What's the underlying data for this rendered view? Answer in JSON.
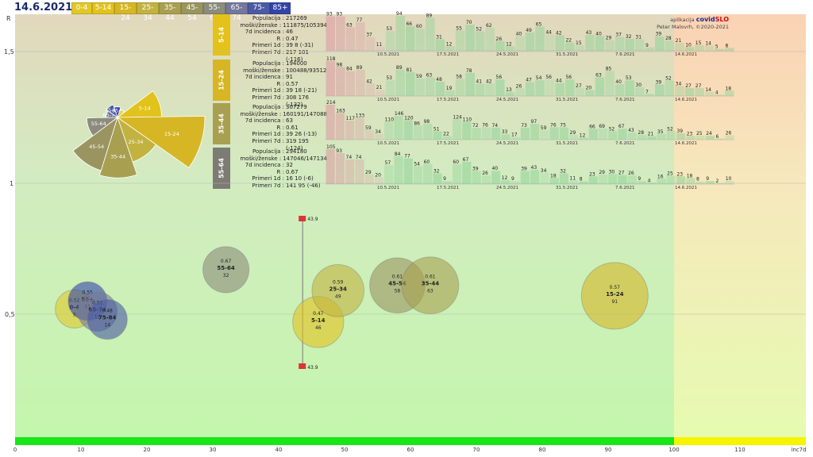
{
  "header": {
    "date": "14.6.2021",
    "legend": [
      {
        "label": "0-4",
        "color": "#e0c828"
      },
      {
        "label": "5-14",
        "color": "#e2c21c"
      },
      {
        "label": "15-24",
        "color": "#d6b624"
      },
      {
        "label": "25-34",
        "color": "#c2b240"
      },
      {
        "label": "35-44",
        "color": "#a8a050"
      },
      {
        "label": "45-54",
        "color": "#9a9460"
      },
      {
        "label": "55-64",
        "color": "#8c8c7c"
      },
      {
        "label": "65-74",
        "color": "#74789a"
      },
      {
        "label": "75-84",
        "color": "#4a5aa4"
      },
      {
        "label": "85+",
        "color": "#3244aa"
      }
    ]
  },
  "credit": {
    "app": "aplikacija",
    "brand_a": "covid",
    "brand_b": "SLO",
    "author": "Peter Malovrh, ©2020-2021"
  },
  "axis": {
    "r_label": "R",
    "r_ticks": [
      "1,5",
      "1",
      "0,5"
    ],
    "x_ticks": [
      "0",
      "10",
      "20",
      "30",
      "40",
      "50",
      "60",
      "70",
      "80",
      "90",
      "100",
      "110"
    ],
    "x_unit": "inc7d"
  },
  "groups": [
    {
      "name": "5-14",
      "color": "#e4c21a",
      "stats": {
        "Populacija": "217269",
        "moški/ženske": "111875/105394",
        "7d incidenca": "46",
        "R": "0.47",
        "Primeri 1d": "39 8 (-31)",
        "Primeri 7d": "217 101 (-116)"
      },
      "bars": [
        93,
        93,
        63,
        77,
        37,
        11,
        53,
        94,
        66,
        60,
        89,
        31,
        12,
        55,
        70,
        52,
        62,
        26,
        12,
        40,
        49,
        65,
        44,
        42,
        22,
        15,
        43,
        40,
        29,
        37,
        32,
        31,
        9,
        39,
        28,
        21,
        10,
        15,
        14,
        5,
        8
      ],
      "dates": [
        "10.5.2021",
        "17.5.2021",
        "24.5.2021",
        "31.5.2021",
        "7.6.2021",
        "14.6.2021"
      ]
    },
    {
      "name": "15-24",
      "color": "#d6b624",
      "stats": {
        "Populacija": "194000",
        "moški/ženske": "100488/93512",
        "7d incidenca": "91",
        "R": "0.57",
        "Primeri 1d": "39 18 (-21)",
        "Primeri 7d": "308 176 (-132)"
      },
      "bars": [
        118,
        98,
        84,
        89,
        42,
        21,
        53,
        89,
        81,
        59,
        63,
        48,
        19,
        58,
        78,
        41,
        42,
        56,
        13,
        26,
        47,
        54,
        56,
        44,
        56,
        27,
        20,
        63,
        85,
        40,
        53,
        30,
        7,
        39,
        52,
        34,
        27,
        27,
        14,
        4,
        18
      ],
      "dates": [
        "10.5.2021",
        "17.5.2021",
        "24.5.2021",
        "31.5.2021",
        "7.6.2021",
        "14.6.2021"
      ]
    },
    {
      "name": "35-44",
      "color": "#a8a050",
      "stats": {
        "Populacija": "307279",
        "moški/ženske": "160191/147088",
        "7d incidenca": "63",
        "R": "0.61",
        "Primeri 1d": "39 26 (-13)",
        "Primeri 7d": "319 195 (-124)"
      },
      "bars": [
        214,
        163,
        117,
        133,
        59,
        34,
        110,
        146,
        120,
        86,
        98,
        51,
        22,
        124,
        110,
        72,
        76,
        74,
        33,
        17,
        73,
        97,
        59,
        76,
        75,
        29,
        12,
        66,
        69,
        52,
        67,
        43,
        28,
        21,
        35,
        52,
        39,
        23,
        25,
        24,
        6,
        26
      ],
      "dates": [
        "10.5.2021",
        "17.5.2021",
        "24.5.2021",
        "31.5.2021",
        "7.6.2021",
        "14.6.2021"
      ]
    },
    {
      "name": "55-64",
      "color": "#7c7c74",
      "stats": {
        "Populacija": "294180",
        "moški/ženske": "147046/147134",
        "7d incidenca": "32",
        "R": "0.67",
        "Primeri 1d": "16 10 (-6)",
        "Primeri 7d": "141 95 (-46)"
      },
      "bars": [
        105,
        93,
        74,
        74,
        29,
        20,
        57,
        84,
        77,
        54,
        60,
        32,
        9,
        60,
        67,
        39,
        26,
        40,
        12,
        9,
        39,
        43,
        34,
        18,
        32,
        11,
        8,
        23,
        29,
        30,
        27,
        26,
        9,
        4,
        16,
        25,
        23,
        18,
        8,
        9,
        2,
        10
      ],
      "dates": [
        "10.5.2021",
        "17.5.2021",
        "24.5.2021",
        "31.5.2021",
        "7.6.2021",
        "14.6.2021"
      ]
    }
  ],
  "chart_data": {
    "type": "scatter",
    "xlabel": "inc7d",
    "ylabel": "R",
    "xlim": [
      0,
      120
    ],
    "ylim": [
      0,
      1.9
    ],
    "points": [
      {
        "group": "0-4",
        "inc7d": 9,
        "R": 0.52,
        "label_r": "0.52",
        "label_inc": "9"
      },
      {
        "group": "85+",
        "inc7d": 11,
        "R": 0.55,
        "label_r": "0.55",
        "label_inc": "11"
      },
      {
        "group": "65-74",
        "inc7d": 12.5,
        "R": 0.51,
        "label_r": "0.51",
        "label_inc": "12"
      },
      {
        "group": "75-84",
        "inc7d": 14,
        "R": 0.48,
        "label_r": "0.48",
        "label_inc": "14"
      },
      {
        "group": "55-64",
        "inc7d": 32,
        "R": 0.67,
        "label_r": "0.67",
        "label_inc": "32"
      },
      {
        "group": "5-14",
        "inc7d": 46,
        "R": 0.47,
        "label_r": "0.47",
        "label_inc": "46"
      },
      {
        "group": "25-34",
        "inc7d": 49,
        "R": 0.59,
        "label_r": "0.59",
        "label_inc": "49"
      },
      {
        "group": "45-54",
        "inc7d": 58,
        "R": 0.61,
        "label_r": "0.61",
        "label_inc": "58"
      },
      {
        "group": "35-44",
        "inc7d": 63,
        "R": 0.61,
        "label_r": "0.61",
        "label_inc": "63"
      },
      {
        "group": "15-24",
        "inc7d": 91,
        "R": 0.57,
        "label_r": "0.57",
        "label_inc": "91"
      }
    ],
    "marker_line": {
      "inc7d": 44,
      "r_top": 1.0,
      "r_bottom": 0.3,
      "top_label": "43.9",
      "bottom_label": "43.9"
    },
    "rose": [
      {
        "group": "0-4",
        "value": 9
      },
      {
        "group": "5-14",
        "value": 46
      },
      {
        "group": "15-24",
        "value": 91
      },
      {
        "group": "25-34",
        "value": 49
      },
      {
        "group": "35-44",
        "value": 63
      },
      {
        "group": "45-54",
        "value": 58
      },
      {
        "group": "55-64",
        "value": 32
      },
      {
        "group": "65-74",
        "value": 12
      },
      {
        "group": "75-84",
        "value": 14
      },
      {
        "group": "85+",
        "value": 11
      }
    ]
  }
}
